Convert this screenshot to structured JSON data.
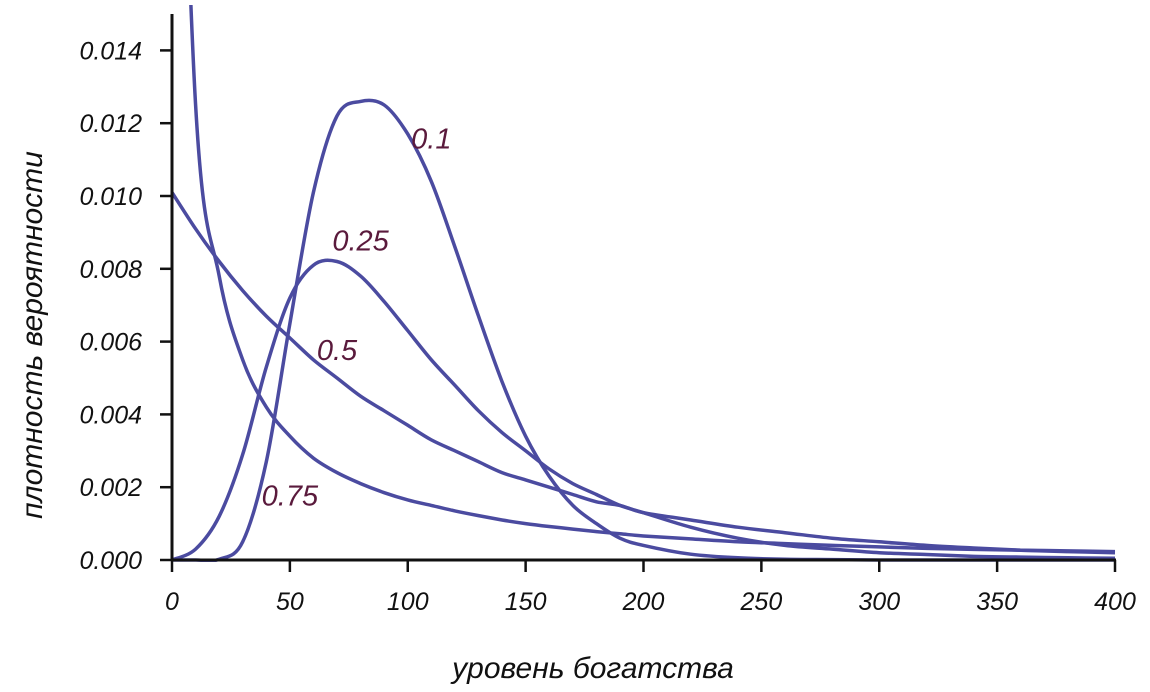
{
  "chart_data": {
    "type": "line",
    "title": "",
    "xlabel": "уровень богатства",
    "ylabel": "плотность вероятности",
    "xlim": [
      0,
      400
    ],
    "ylim": [
      0,
      0.015
    ],
    "xticks": [
      "0",
      "50",
      "100",
      "150",
      "200",
      "250",
      "300",
      "350",
      "400"
    ],
    "yticks": [
      "0.000",
      "0.002",
      "0.004",
      "0.006",
      "0.008",
      "0.010",
      "0.012",
      "0.014"
    ],
    "grid": false,
    "colors": {
      "series": "#4b4ba0",
      "labels": "#5a1a3c",
      "axes": "#111111"
    },
    "x": [
      0,
      10,
      20,
      30,
      40,
      50,
      60,
      70,
      80,
      90,
      100,
      110,
      120,
      130,
      140,
      150,
      160,
      170,
      180,
      190,
      200,
      220,
      240,
      260,
      280,
      300,
      320,
      340,
      360,
      380,
      400
    ],
    "series": [
      {
        "name": "0.1",
        "label_at": [
          110,
          0.0113
        ],
        "values": [
          0.0,
          0.0,
          2e-05,
          0.0005,
          0.0027,
          0.0065,
          0.0101,
          0.0122,
          0.0126,
          0.0125,
          0.0117,
          0.0104,
          0.0086,
          0.0067,
          0.0049,
          0.0034,
          0.0023,
          0.0015,
          0.001,
          0.0006,
          0.0004,
          0.00016,
          6e-05,
          2e-05,
          1e-05,
          0.0,
          0.0,
          0.0,
          0.0,
          0.0,
          0.0
        ]
      },
      {
        "name": "0.25",
        "label_at": [
          80,
          0.0085
        ],
        "values": [
          0.0,
          0.0003,
          0.0012,
          0.0029,
          0.0053,
          0.0072,
          0.0081,
          0.0082,
          0.0078,
          0.0071,
          0.0063,
          0.0055,
          0.0048,
          0.0041,
          0.0035,
          0.003,
          0.0025,
          0.0021,
          0.0018,
          0.0015,
          0.0013,
          0.0009,
          0.0006,
          0.0004,
          0.0003,
          0.0002,
          0.00015,
          0.0001,
          8e-05,
          6e-05,
          5e-05
        ]
      },
      {
        "name": "0.5",
        "label_at": [
          70,
          0.0055
        ],
        "values": [
          0.0101,
          0.0091,
          0.0082,
          0.0074,
          0.0067,
          0.0061,
          0.0055,
          0.005,
          0.0045,
          0.0041,
          0.0037,
          0.0033,
          0.003,
          0.0027,
          0.0024,
          0.0022,
          0.002,
          0.0018,
          0.0016,
          0.0015,
          0.0013,
          0.0011,
          0.0009,
          0.00075,
          0.0006,
          0.0005,
          0.0004,
          0.00033,
          0.00027,
          0.00023,
          0.0002
        ]
      },
      {
        "name": "0.75",
        "label_at": [
          50,
          0.0015
        ],
        "values": [
          0.03,
          0.0125,
          0.0078,
          0.0055,
          0.0042,
          0.0034,
          0.0028,
          0.0024,
          0.0021,
          0.00185,
          0.00165,
          0.0015,
          0.00135,
          0.00122,
          0.0011,
          0.001,
          0.00092,
          0.00085,
          0.00078,
          0.00072,
          0.00066,
          0.00058,
          0.0005,
          0.00045,
          0.0004,
          0.00036,
          0.00032,
          0.00029,
          0.00027,
          0.00025,
          0.00023
        ]
      }
    ]
  }
}
